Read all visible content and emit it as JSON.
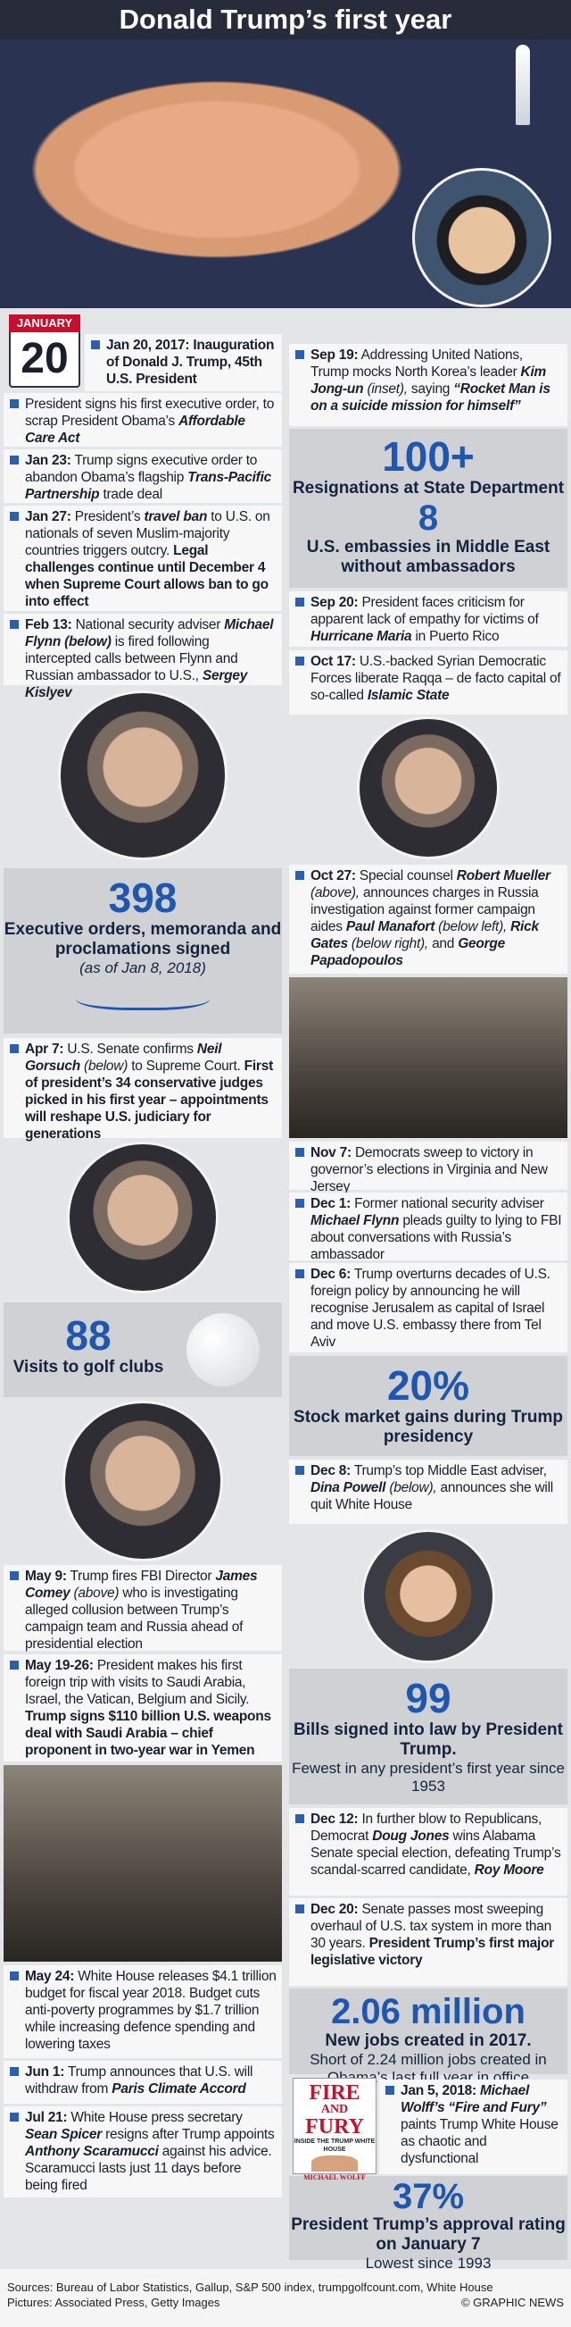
{
  "header": {
    "title": "Donald Trump’s first year"
  },
  "january_badge": {
    "month": "JANUARY",
    "day": "20"
  },
  "events_left": [
    [
      "Jan 20, 2017:",
      "Inauguration of Donald J. Trump, 45th U.S. President"
    ],
    [
      "President signs his first executive order, to scrap President Obama’s",
      "Affordable Care Act"
    ],
    [
      "Jan 23:",
      "Trump signs executive order to abandon Obama’s flagship",
      "Trans-Pacific Partnership",
      "trade deal"
    ],
    [
      "Jan 27:",
      "President’s",
      "travel ban",
      "to U.S. on nationals of seven Muslim-majority countries triggers outcry.",
      "Legal challenges continue until December 4 when Supreme Court allows ban to go into effect"
    ],
    [
      "Feb 13:",
      "National security adviser",
      "Michael Flynn (below)",
      "is fired following intercepted calls between Flynn and Russian ambassador to U.S.,",
      "Sergey Kislyev"
    ],
    [
      "Apr 7:",
      "U.S. Senate confirms",
      "Neil Gorsuch",
      "(below)",
      "to Supreme Court.",
      "First of president’s 34 conservative judges picked in his first year – appointments will reshape U.S. judiciary for generations"
    ],
    [
      "May 9:",
      "Trump fires FBI Director",
      "James Comey",
      "(above)",
      "who is investigating alleged collusion between Trump’s campaign team and Russia ahead of presidential election"
    ],
    [
      "May 19-26:",
      "President makes his first foreign trip with visits to Saudi Arabia, Israel, the Vatican, Belgium and Sicily.",
      "Trump signs $110 billion U.S. weapons deal with Saudi Arabia – chief proponent in two-year war in Yemen"
    ],
    [
      "May 24:",
      "White House releases $4.1 trillion budget for fiscal year 2018. Budget cuts anti-poverty programmes by $1.7 trillion while increasing defence spending and lowering taxes"
    ],
    [
      "Jun 1:",
      "Trump announces that U.S. will withdraw from",
      "Paris Climate Accord"
    ],
    [
      "Jul 21:",
      "White House press secretary",
      "Sean Spicer",
      "resigns after Trump appoints",
      "Anthony Scaramucci",
      "against his advice. Scaramucci lasts just 11 days before being fired"
    ]
  ],
  "events_right": [
    [
      "Sep 19:",
      "Addressing United Nations, Trump mocks North Korea’s leader",
      "Kim Jong-un",
      "(inset),",
      "saying",
      "“Rocket Man is on a suicide mission for himself”"
    ],
    [
      "Sep 20:",
      "President faces criticism for apparent lack of empathy for victims of",
      "Hurricane Maria",
      "in Puerto Rico"
    ],
    [
      "Oct 17:",
      "U.S.-backed Syrian Democratic Forces liberate Raqqa – de facto capital of so-called",
      "Islamic State"
    ],
    [
      "Oct 27:",
      "Special counsel",
      "Robert Mueller",
      "(above),",
      "announces charges in Russia investigation against former campaign aides",
      "Paul Manafort",
      "(below left),",
      "Rick Gates",
      "(below right),",
      "and",
      "George Papadopoulos"
    ],
    [
      "Nov 7:",
      "Democrats sweep to victory in governor’s elections in Virginia and New Jersey"
    ],
    [
      "Dec 1:",
      "Former national security adviser",
      "Michael Flynn",
      "pleads guilty to lying to FBI about conversations with Russia’s ambassador"
    ],
    [
      "Dec 6:",
      "Trump overturns decades of U.S. foreign policy by announcing he will recognise Jerusalem as capital of Israel and move U.S. embassy there from Tel Aviv"
    ],
    [
      "Dec 8:",
      "Trump’s top Middle East adviser,",
      "Dina Powell",
      "(below),",
      "announces she will quit White House"
    ],
    [
      "Dec 12:",
      "In further blow to Republicans, Democrat",
      "Doug Jones",
      "wins Alabama Senate special election, defeating Trump’s scandal-scarred candidate,",
      "Roy Moore"
    ],
    [
      "Dec 20:",
      "Senate passes most sweeping overhaul of U.S. tax system in more than 30 years.",
      "President Trump’s first major legislative victory"
    ],
    [
      "Jan 5, 2018:",
      "Michael Wolff’s",
      "“Fire and Fury”",
      "paints Trump White House as chaotic and dysfunctional"
    ]
  ],
  "executive_orders": {
    "number": "398",
    "label": "Executive orders, memoranda and proclamations signed",
    "note": "(as of Jan 8, 2018)"
  },
  "golf": {
    "number": "88",
    "label": "Visits to golf clubs"
  },
  "resignations": {
    "number": "100+",
    "label": "Resignations at State Department",
    "number2": "8",
    "label2": "U.S. embassies in Middle East without ambassadors"
  },
  "stock_market": {
    "number": "20%",
    "label": "Stock market gains during Trump presidency"
  },
  "bills": {
    "number": "99",
    "label": "Bills signed into law by President Trump.",
    "note": "Fewest in any president’s first year since 1953"
  },
  "jobs": {
    "number": "2.06 million",
    "label": "New jobs created in 2017.",
    "note": "Short of 2.24 million jobs created in Obama’s last full year in office"
  },
  "approval": {
    "number": "37%",
    "label": "President Trump’s approval rating on January 7",
    "note": "Lowest since 1993"
  },
  "book": {
    "line1": "FIRE",
    "line2": "AND",
    "line3": "FURY",
    "subtitle": "INSIDE THE TRUMP WHITE HOUSE",
    "author": "MICHAEL WOLFF"
  },
  "footer": {
    "sources": "Sources: Bureau of Labor Statistics, Gallup, S&P 500 index, trumpgolfcount.com, White House",
    "pictures": "Pictures: Associated Press, Getty Images",
    "credit": "© GRAPHIC NEWS"
  }
}
